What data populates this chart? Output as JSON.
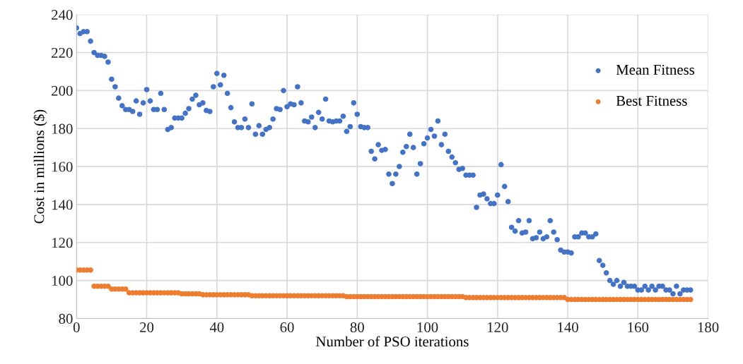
{
  "chart_data": {
    "type": "scatter",
    "xlabel": "Number of PSO iterations",
    "ylabel": "Cost in millions ($)",
    "xlim": [
      0,
      180
    ],
    "xticks": [
      0,
      20,
      40,
      60,
      80,
      100,
      120,
      140,
      160,
      180
    ],
    "ylim": [
      80,
      240
    ],
    "yticks": [
      80,
      100,
      120,
      140,
      160,
      180,
      200,
      220,
      240
    ],
    "grid": true,
    "legend": "top right",
    "marker": "circle",
    "series": [
      {
        "name": "Mean Fitness",
        "color": "#4472c4",
        "x": [
          0,
          1,
          2,
          3,
          4,
          5,
          6,
          7,
          8,
          9,
          10,
          11,
          12,
          13,
          14,
          15,
          16,
          17,
          18,
          19,
          20,
          21,
          22,
          23,
          24,
          25,
          26,
          27,
          28,
          29,
          30,
          31,
          32,
          33,
          34,
          35,
          36,
          37,
          38,
          39,
          40,
          41,
          42,
          43,
          44,
          45,
          46,
          47,
          48,
          49,
          50,
          51,
          52,
          53,
          54,
          55,
          56,
          57,
          58,
          59,
          60,
          61,
          62,
          63,
          64,
          65,
          66,
          67,
          68,
          69,
          70,
          71,
          72,
          73,
          74,
          75,
          76,
          77,
          78,
          79,
          80,
          81,
          82,
          83,
          84,
          85,
          86,
          87,
          88,
          89,
          90,
          91,
          92,
          93,
          94,
          95,
          96,
          97,
          98,
          99,
          100,
          101,
          102,
          103,
          104,
          105,
          106,
          107,
          108,
          109,
          110,
          111,
          112,
          113,
          114,
          115,
          116,
          117,
          118,
          119,
          120,
          121,
          122,
          123,
          124,
          125,
          126,
          127,
          128,
          129,
          130,
          131,
          132,
          133,
          134,
          135,
          136,
          137,
          138,
          139,
          140,
          141,
          142,
          143,
          144,
          145,
          146,
          147,
          148,
          149,
          150,
          151,
          152,
          153,
          154,
          155,
          156,
          157,
          158,
          159,
          160,
          161,
          162,
          163,
          164,
          165,
          166,
          167,
          168,
          169,
          170,
          171,
          172,
          173,
          174,
          175
        ],
        "values": [
          233,
          230,
          231,
          231,
          226,
          220,
          218.5,
          218.5,
          218,
          215,
          206,
          202,
          196,
          192,
          190,
          190,
          189,
          194.5,
          187.5,
          193.5,
          200.5,
          194.5,
          190,
          190,
          198.5,
          190,
          179.5,
          180.5,
          185.5,
          185.5,
          185.5,
          188,
          190.5,
          195.5,
          197.5,
          192.5,
          193.5,
          189.5,
          189,
          202,
          209,
          203,
          208,
          198.5,
          191,
          183.5,
          180.5,
          180.5,
          185,
          180.5,
          193,
          177,
          181.5,
          177,
          179.5,
          180.5,
          185,
          190.5,
          190,
          200,
          191.5,
          193,
          192.5,
          202,
          193.5,
          184,
          183.5,
          186,
          180.5,
          188.5,
          185,
          195.5,
          184,
          183.5,
          184,
          184,
          186.5,
          178.5,
          181,
          193.5,
          187.5,
          181,
          180.5,
          180.5,
          168,
          164,
          171.5,
          168.5,
          169,
          156,
          151,
          156,
          160,
          167.5,
          170.5,
          177,
          170,
          156,
          161.5,
          172,
          175,
          179.5,
          176,
          184,
          171.5,
          177,
          168,
          165,
          162,
          158.5,
          159,
          155.5,
          155.5,
          155.5,
          138.5,
          145,
          145.5,
          143,
          140.5,
          140.5,
          145,
          161,
          149.5,
          141.5,
          128,
          126,
          131.5,
          125,
          125.5,
          131.5,
          122,
          122.5,
          125.5,
          122,
          123,
          131.5,
          125.5,
          121.5,
          116,
          115,
          115,
          114.5,
          123,
          123,
          125,
          125,
          123,
          123,
          124.5,
          110.5,
          108,
          104,
          100,
          98,
          100,
          97,
          99,
          97,
          97,
          97,
          95,
          95,
          97,
          95,
          97,
          95,
          97,
          97,
          95,
          95,
          93,
          97,
          93,
          95,
          95,
          95
        ]
      },
      {
        "name": "Best Fitness",
        "color": "#ed7d31",
        "x": [
          0,
          1,
          2,
          3,
          4,
          5,
          6,
          7,
          8,
          9,
          10,
          11,
          12,
          13,
          14,
          15,
          16,
          17,
          18,
          19,
          20,
          21,
          22,
          23,
          24,
          25,
          26,
          27,
          28,
          29,
          30,
          31,
          32,
          33,
          34,
          35,
          36,
          37,
          38,
          39,
          40,
          41,
          42,
          43,
          44,
          45,
          46,
          47,
          48,
          49,
          50,
          51,
          52,
          53,
          54,
          55,
          56,
          57,
          58,
          59,
          60,
          61,
          62,
          63,
          64,
          65,
          66,
          67,
          68,
          69,
          70,
          71,
          72,
          73,
          74,
          75,
          76,
          77,
          78,
          79,
          80,
          81,
          82,
          83,
          84,
          85,
          86,
          87,
          88,
          89,
          90,
          91,
          92,
          93,
          94,
          95,
          96,
          97,
          98,
          99,
          100,
          101,
          102,
          103,
          104,
          105,
          106,
          107,
          108,
          109,
          110,
          111,
          112,
          113,
          114,
          115,
          116,
          117,
          118,
          119,
          120,
          121,
          122,
          123,
          124,
          125,
          126,
          127,
          128,
          129,
          130,
          131,
          132,
          133,
          134,
          135,
          136,
          137,
          138,
          139,
          140,
          141,
          142,
          143,
          144,
          145,
          146,
          147,
          148,
          149,
          150,
          151,
          152,
          153,
          154,
          155,
          156,
          157,
          158,
          159,
          160,
          161,
          162,
          163,
          164,
          165,
          166,
          167,
          168,
          169,
          170,
          171,
          172,
          173,
          174,
          175
        ],
        "values": [
          105.5,
          105.5,
          105.5,
          105.5,
          105.5,
          97,
          97,
          97,
          97,
          97,
          95.5,
          95.5,
          95.5,
          95.5,
          95.5,
          93.5,
          93.5,
          93.5,
          93.5,
          93.5,
          93.5,
          93.5,
          93.5,
          93.5,
          93.5,
          93.5,
          93.5,
          93.5,
          93.5,
          93.5,
          93,
          93,
          93,
          93,
          93,
          93,
          92.5,
          92.5,
          92.5,
          92.5,
          92.5,
          92.5,
          92.5,
          92.5,
          92.5,
          92.5,
          92.5,
          92.5,
          92.5,
          92.5,
          92,
          92,
          92,
          92,
          92,
          92,
          92,
          92,
          92,
          92,
          92,
          92,
          92,
          92,
          92,
          92,
          92,
          92,
          92,
          92,
          92,
          92,
          92,
          92,
          92,
          92,
          92,
          91.5,
          91.5,
          91.5,
          91.5,
          91.5,
          91.5,
          91.5,
          91.5,
          91.5,
          91.5,
          91.5,
          91.5,
          91.5,
          91.5,
          91.5,
          91.5,
          91.5,
          91.5,
          91.5,
          91.5,
          91.5,
          91.5,
          91.5,
          91.5,
          91.5,
          91.5,
          91.5,
          91.5,
          91.5,
          91.5,
          91.5,
          91.5,
          91.5,
          91.5,
          91,
          91,
          91,
          91,
          91,
          91,
          91,
          91,
          91,
          91,
          91,
          91,
          91,
          91,
          91,
          91,
          91,
          91,
          91,
          91,
          91,
          91,
          91,
          91,
          91,
          91,
          91,
          91,
          91,
          90,
          90,
          90,
          90,
          90,
          90,
          90,
          90,
          90,
          90,
          90,
          90,
          90,
          90,
          90,
          90,
          90,
          90,
          90,
          90,
          90,
          90,
          90,
          90,
          90,
          90,
          90,
          90,
          90,
          90,
          90,
          90,
          90,
          90,
          90,
          90
        ]
      }
    ]
  }
}
